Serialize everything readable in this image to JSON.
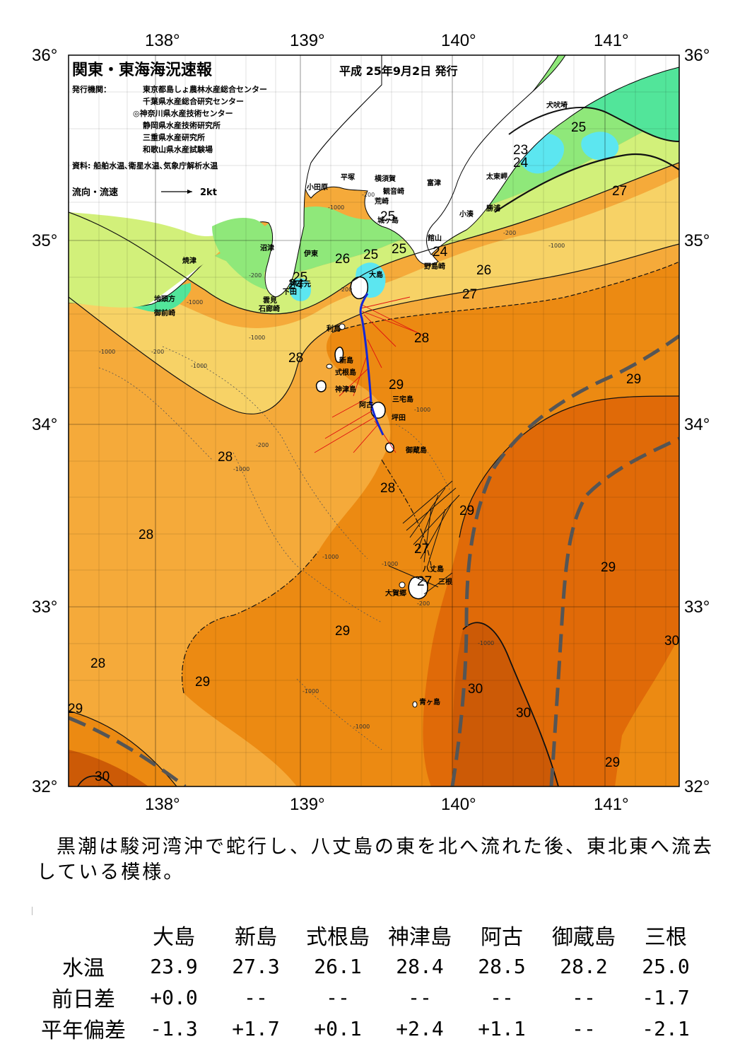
{
  "map": {
    "title": "関東・東海海況速報",
    "issue_date": "平成 25年9月2日 発行",
    "issuer_label": "発行機関：",
    "issuers": [
      "東京都島しょ農林水産総合センター",
      "千葉県水産総合研究センター",
      "◎神奈川県水産技術センター",
      "静岡県水産技術研究所",
      "三重県水産研究所",
      "和歌山県水産試験場"
    ],
    "source": "資料: 船舶水温､衛星水温､気象庁解析水温",
    "flow_legend_label": "流向・流速",
    "flow_legend_unit": "2kt",
    "lon_labels": [
      "138°",
      "139°",
      "140°",
      "141°"
    ],
    "lat_labels": [
      "36°",
      "35°",
      "34°",
      "33°",
      "32°"
    ],
    "isotherm_labels": [
      "25",
      "23",
      "24",
      "27",
      "25",
      "25",
      "24",
      "26",
      "25",
      "25",
      "24",
      "26",
      "27",
      "28",
      "28",
      "29",
      "28",
      "28",
      "29",
      "28",
      "29",
      "27",
      "27",
      "29",
      "29",
      "28",
      "29",
      "30",
      "30",
      "29",
      "29",
      "30"
    ],
    "place_names": [
      "犬吠埼",
      "太東岬",
      "勝浦",
      "小湊",
      "館山",
      "野島崎",
      "富津",
      "横須賀",
      "観音崎",
      "荒崎",
      "城ヶ島",
      "平塚",
      "小田原",
      "沼津",
      "伊東",
      "大島",
      "焼津",
      "下田",
      "雲見",
      "石廊崎",
      "神子元",
      "御前崎",
      "地頭方",
      "利島",
      "新島",
      "式根島",
      "神津島",
      "三宅島",
      "坪田",
      "阿古",
      "御蔵島",
      "八丈島",
      "三根",
      "大賀郷",
      "青ヶ島"
    ],
    "depth_labels": [
      "-200",
      "-1000",
      "-200",
      "-1000",
      "-200",
      "-1000",
      "-200",
      "-1000",
      "-200",
      "-1000",
      "-200",
      "-1000",
      "-1000",
      "-1000",
      "-200",
      "-1000",
      "-1000",
      "-1000",
      "-1000",
      "-1000"
    ]
  },
  "summary_text": "黒潮は駿河湾沖で蛇行し、八丈島の東を北へ流れた後、東北東へ流去している模様。",
  "table": {
    "stations": [
      "大島",
      "新島",
      "式根島",
      "神津島",
      "阿古",
      "御蔵島",
      "三根"
    ],
    "rows": [
      {
        "label": "水温",
        "values": [
          "23.9",
          "27.3",
          "26.1",
          "28.4",
          "28.5",
          "28.2",
          "25.0"
        ]
      },
      {
        "label": "前日差",
        "values": [
          "+0.0",
          "--",
          "--",
          "--",
          "--",
          "--",
          "-1.7"
        ]
      },
      {
        "label": "平年偏差",
        "values": [
          "-1.3",
          "+1.7",
          "+0.1",
          "+2.4",
          "+1.1",
          "--",
          "-2.1"
        ]
      }
    ]
  },
  "colors": {
    "temp_23": "#5ce6f0",
    "temp_24": "#52e59a",
    "temp_25": "#8fe87a",
    "temp_26": "#d2f07a",
    "temp_27": "#f7d266",
    "temp_28": "#f5aa3a",
    "temp_29": "#ec8a12",
    "temp_30": "#e06a08",
    "temp_30_plus": "#cc5a06",
    "land": "#ffffff",
    "kuroshio_axis": "#555555",
    "ship_track": "#1428d6",
    "adcp_vectors": "#e01010"
  }
}
